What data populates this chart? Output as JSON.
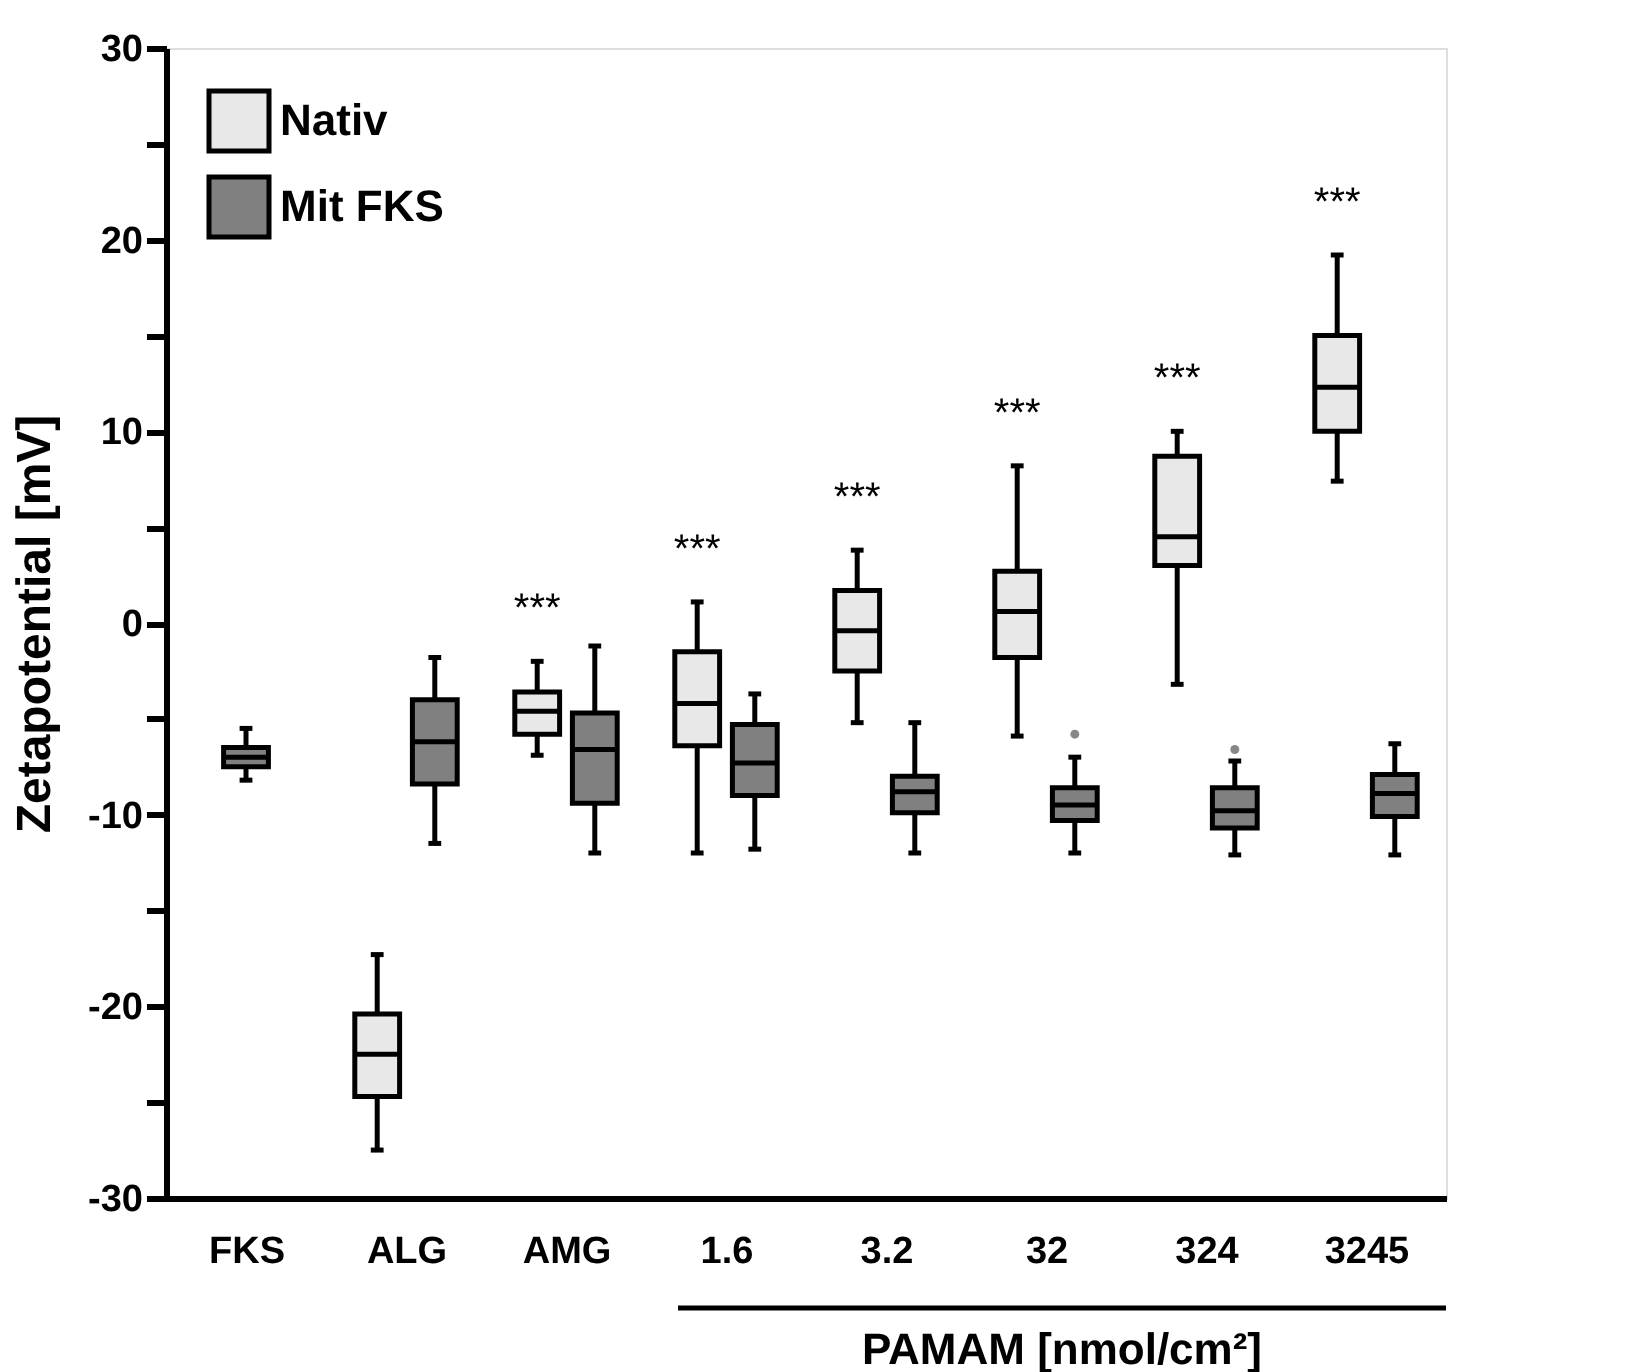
{
  "chart_data": {
    "type": "box",
    "categories": [
      "FKS",
      "ALG",
      "AMG",
      "1.6",
      "3.2",
      "32",
      "324",
      "3245"
    ],
    "xlabel": "PAMAM [nmol/cm²]",
    "ylabel": "Zetapotential [mV]",
    "ylim": [
      -30,
      30
    ],
    "yticks": [
      -30,
      {
        "value": -25,
        "label": null
      },
      -20,
      {
        "value": -15,
        "label": null
      },
      -10,
      {
        "value": -5,
        "label": null
      },
      0,
      {
        "value": 5,
        "label": null
      },
      10,
      {
        "value": 15,
        "label": null
      },
      20,
      {
        "value": 25,
        "label": null
      },
      30
    ],
    "grid": false,
    "legend": "top left",
    "series": [
      {
        "name": "Nativ",
        "color": "#e8e8e8",
        "boxes": [
          null,
          {
            "low": -27.5,
            "q1": -24.7,
            "median": -22.5,
            "q3": -20.4,
            "high": -17.3
          },
          {
            "low": -6.9,
            "q1": -5.8,
            "median": -4.6,
            "q3": -3.6,
            "high": -2
          },
          {
            "low": -12,
            "q1": -6.4,
            "median": -4.2,
            "q3": -1.5,
            "high": 1.1
          },
          {
            "low": -5.2,
            "q1": -2.5,
            "median": -0.4,
            "q3": 1.7,
            "high": 3.8
          },
          {
            "low": -5.9,
            "q1": -1.8,
            "median": 0.6,
            "q3": 2.7,
            "high": 8.2
          },
          {
            "low": -3.2,
            "q1": 3,
            "median": 4.5,
            "q3": 8.7,
            "high": 10
          },
          {
            "low": 7.4,
            "q1": 10,
            "median": 12.3,
            "q3": 15,
            "high": 19.2
          }
        ]
      },
      {
        "name": "Mit FKS",
        "color": "#808080",
        "boxes": [
          {
            "low": -8.2,
            "q1": -7.5,
            "median": -7,
            "q3": -6.5,
            "high": -5.5
          },
          {
            "low": -11.5,
            "q1": -8.4,
            "median": -6.2,
            "q3": -4,
            "high": -1.8
          },
          {
            "low": -12,
            "q1": -9.4,
            "median": -6.6,
            "q3": -4.7,
            "high": -1.2
          },
          {
            "low": -11.8,
            "q1": -9,
            "median": -7.3,
            "q3": -5.3,
            "high": -3.7
          },
          {
            "low": -12,
            "q1": -9.9,
            "median": -8.8,
            "q3": -8,
            "high": -5.2
          },
          {
            "low": -12,
            "q1": -10.3,
            "median": -9.5,
            "q3": -8.6,
            "high": -7,
            "outliers": [
              -5.8
            ]
          },
          {
            "low": -12.1,
            "q1": -10.7,
            "median": -9.8,
            "q3": -8.6,
            "high": -7.2,
            "outliers": [
              -6.6
            ]
          },
          {
            "low": -12.1,
            "q1": -10.1,
            "median": -8.9,
            "q3": -7.9,
            "high": -6.3
          }
        ]
      }
    ],
    "annotations": [
      "***",
      "***",
      "***",
      "***",
      "***",
      "***"
    ]
  }
}
